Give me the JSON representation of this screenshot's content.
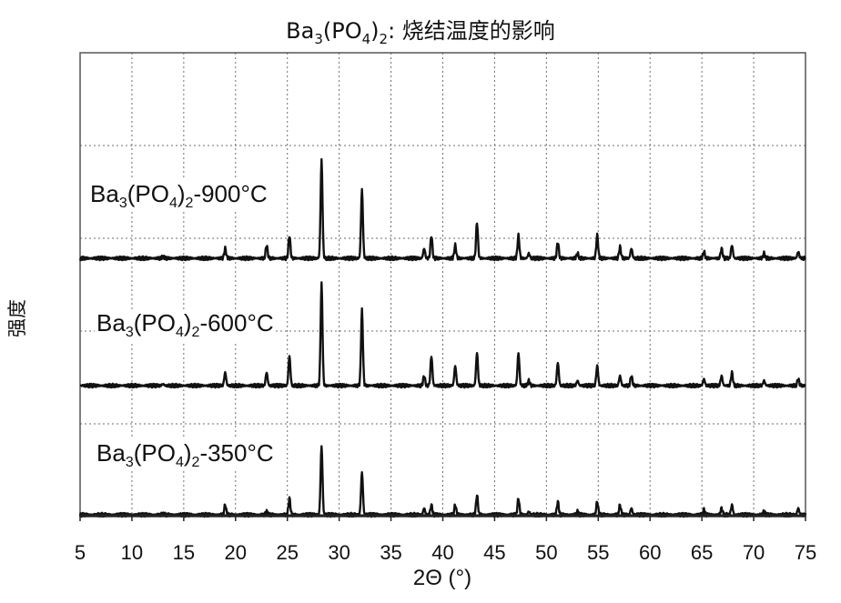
{
  "chart_data": {
    "type": "line",
    "title": {
      "main": "Ba",
      "sub1": "3",
      "mid": "(PO",
      "sub2": "4",
      "tail": ")",
      "sub3": "2",
      "suffix": ": 烧结温度的影响"
    },
    "xlabel": "2Θ (°)",
    "ylabel": "强度",
    "xlim": [
      5,
      75
    ],
    "x_ticks": [
      "5",
      "10",
      "15",
      "20",
      "25",
      "30",
      "35",
      "40",
      "45",
      "50",
      "55",
      "60",
      "65",
      "70",
      "75"
    ],
    "grid": true,
    "peak_positions": [
      13.0,
      19.0,
      23.0,
      25.2,
      28.3,
      32.2,
      38.2,
      38.9,
      41.2,
      43.3,
      47.3,
      48.3,
      51.1,
      53.0,
      54.9,
      57.1,
      58.2,
      65.2,
      66.9,
      67.9,
      71.0,
      74.3
    ],
    "series": [
      {
        "name_main": "Ba",
        "name_sub1": "3",
        "name_mid": "(PO",
        "name_sub2": "4",
        "name_tail": ")",
        "name_sub3": "2",
        "name_suffix": "-900°C",
        "baseline": 0.0,
        "peak_heights": [
          0.5,
          3,
          4,
          7,
          30,
          21,
          3,
          7,
          4,
          11,
          7,
          1.5,
          5,
          1.5,
          7,
          3.5,
          3,
          2,
          3,
          4,
          1.5,
          2
        ]
      },
      {
        "name_main": "Ba",
        "name_sub1": "3",
        "name_mid": "(PO",
        "name_sub2": "4",
        "name_tail": ")",
        "name_sub3": "2",
        "name_suffix": "-600°C",
        "baseline": 0.0,
        "peak_heights": [
          0.5,
          4,
          4,
          9,
          31,
          23,
          3,
          9,
          6,
          10,
          10,
          1.5,
          7,
          1.5,
          6,
          3,
          3,
          2,
          3,
          4,
          1.5,
          2
        ]
      },
      {
        "name_main": "Ba",
        "name_sub1": "3",
        "name_mid": "(PO",
        "name_sub2": "4",
        "name_tail": ")",
        "name_sub3": "2",
        "name_suffix": "-350°C",
        "baseline": 0.0,
        "peak_heights": [
          0.3,
          3,
          1,
          5,
          21,
          13,
          2,
          3,
          3,
          6,
          5,
          1,
          4,
          1,
          4,
          3,
          2,
          1.5,
          2,
          3,
          1,
          2
        ]
      }
    ],
    "colors": {
      "line": "#111111",
      "grid": "#6e6e6e",
      "frame": "#555555"
    }
  }
}
